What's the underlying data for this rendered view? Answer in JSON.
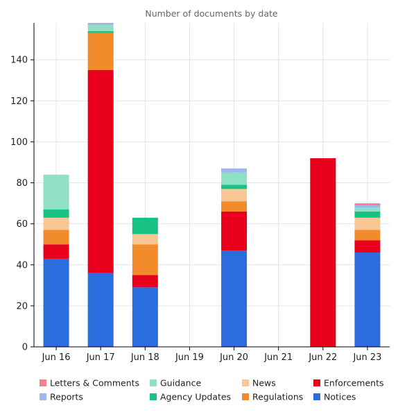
{
  "chart_data": {
    "type": "bar",
    "stacked": true,
    "title": "Number of documents by date",
    "xlabel": "",
    "ylabel": "",
    "ylim": [
      0,
      158
    ],
    "yticks": [
      0,
      20,
      40,
      60,
      80,
      100,
      120,
      140
    ],
    "grid": true,
    "legend_position": "bottom",
    "categories": [
      "Jun 16",
      "Jun 17",
      "Jun 18",
      "Jun 19",
      "Jun 20",
      "Jun 21",
      "Jun 22",
      "Jun 23"
    ],
    "series": [
      {
        "name": "Notices",
        "color": "#2b6cde",
        "values": [
          43,
          36,
          29,
          0,
          47,
          0,
          0,
          46
        ]
      },
      {
        "name": "Enforcements",
        "color": "#e8001c",
        "values": [
          7,
          99,
          6,
          0,
          19,
          0,
          92,
          6
        ]
      },
      {
        "name": "Regulations",
        "color": "#f28b2c",
        "values": [
          7,
          18,
          15,
          0,
          5,
          0,
          0,
          5
        ]
      },
      {
        "name": "News",
        "color": "#f9c794",
        "values": [
          6,
          0,
          5,
          0,
          6,
          0,
          0,
          6
        ]
      },
      {
        "name": "Agency Updates",
        "color": "#18c282",
        "values": [
          4,
          1,
          8,
          0,
          2,
          0,
          0,
          3
        ]
      },
      {
        "name": "Guidance",
        "color": "#8fe0c4",
        "values": [
          17,
          3,
          0,
          0,
          6,
          0,
          0,
          2
        ]
      },
      {
        "name": "Reports",
        "color": "#9ab8ee",
        "values": [
          0,
          1,
          0,
          0,
          2,
          0,
          0,
          1
        ]
      },
      {
        "name": "Letters & Comments",
        "color": "#f5808f",
        "values": [
          0,
          0,
          0,
          0,
          0,
          0,
          0,
          1
        ]
      }
    ],
    "legend": [
      {
        "name": "Letters & Comments",
        "color": "#f5808f"
      },
      {
        "name": "Guidance",
        "color": "#8fe0c4"
      },
      {
        "name": "News",
        "color": "#f9c794"
      },
      {
        "name": "Enforcements",
        "color": "#e8001c"
      },
      {
        "name": "Reports",
        "color": "#9ab8ee"
      },
      {
        "name": "Agency Updates",
        "color": "#18c282"
      },
      {
        "name": "Regulations",
        "color": "#f28b2c"
      },
      {
        "name": "Notices",
        "color": "#2b6cde"
      }
    ]
  }
}
